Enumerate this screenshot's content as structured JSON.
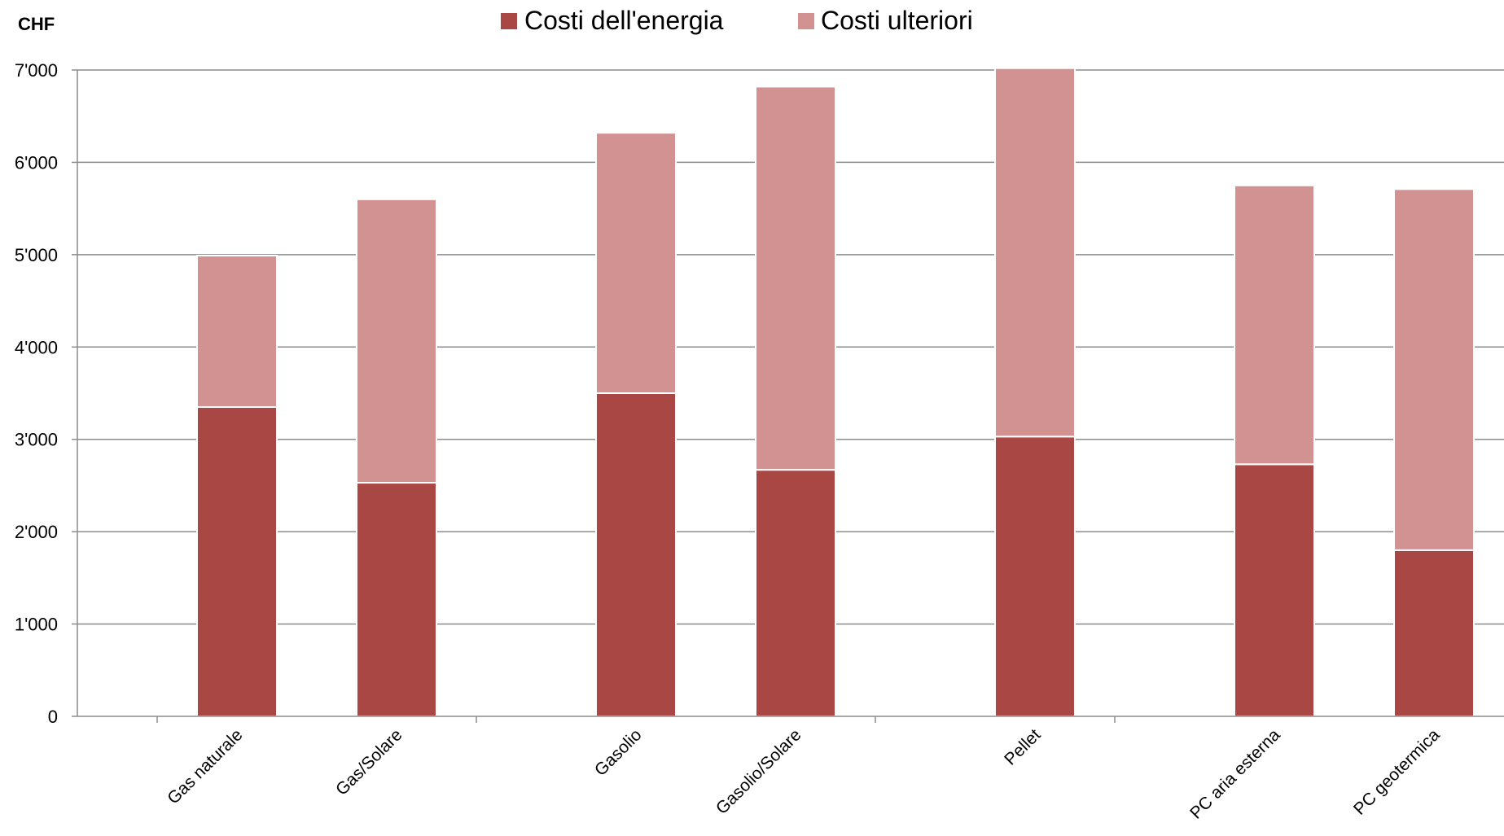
{
  "chart_data": {
    "type": "bar",
    "stacked": true,
    "unit_label": "CHF",
    "categories": [
      "Gas naturale",
      "Gas/Solare",
      "Gasolio",
      "Gasolio/Solare",
      "Pellet",
      "PC  aria esterna",
      "PC  geotermica"
    ],
    "series": [
      {
        "name": "Costi dell'energia",
        "color": "#a94744",
        "values": [
          3350,
          2530,
          3500,
          2670,
          3030,
          2730,
          1800
        ]
      },
      {
        "name": "Costi ulteriori",
        "color": "#d39292",
        "values": [
          1640,
          3070,
          2820,
          4150,
          3990,
          3020,
          3910
        ]
      }
    ],
    "ylim": [
      0,
      7000
    ],
    "yticks": [
      0,
      1000,
      2000,
      3000,
      4000,
      5000,
      6000,
      7000
    ],
    "ytick_labels": [
      "0",
      "1'000",
      "2'000",
      "3'000",
      "4'000",
      "5'000",
      "6'000",
      "7'000"
    ],
    "grid": true,
    "legend_position": "top-center"
  }
}
